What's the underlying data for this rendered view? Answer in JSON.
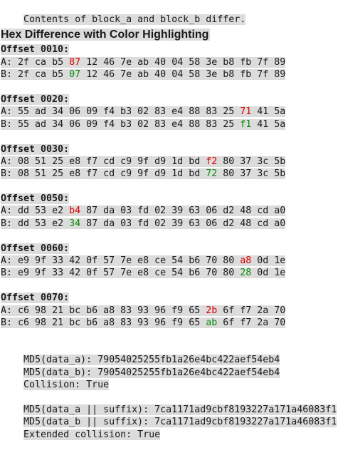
{
  "status_message": "Contents of block_a and block_b differ.",
  "section_title": "Hex Difference with Color Highlighting",
  "colors": {
    "a_diff": "#e00000",
    "b_diff": "#0a8a0a",
    "highlight_bg": "#dcdcdc"
  },
  "blocks": [
    {
      "offset_label": "Offset 0010:",
      "a_prefix": "A: ",
      "b_prefix": "B: ",
      "a_before": "2f ca b5 ",
      "a_diff": "87",
      "a_after": " 12 46 7e ab 40 04 58 3e b8 fb 7f 89",
      "b_before": "2f ca b5 ",
      "b_diff": "07",
      "b_after": " 12 46 7e ab 40 04 58 3e b8 fb 7f 89"
    },
    {
      "offset_label": "Offset 0020:",
      "a_prefix": "A: ",
      "b_prefix": "B: ",
      "a_before": "55 ad 34 06 09 f4 b3 02 83 e4 88 83 25 ",
      "a_diff": "71",
      "a_after": " 41 5a",
      "b_before": "55 ad 34 06 09 f4 b3 02 83 e4 88 83 25 ",
      "b_diff": "f1",
      "b_after": " 41 5a"
    },
    {
      "offset_label": "Offset 0030:",
      "a_prefix": "A: ",
      "b_prefix": "B: ",
      "a_before": "08 51 25 e8 f7 cd c9 9f d9 1d bd ",
      "a_diff": "f2",
      "a_after": " 80 37 3c 5b",
      "b_before": "08 51 25 e8 f7 cd c9 9f d9 1d bd ",
      "b_diff": "72",
      "b_after": " 80 37 3c 5b"
    },
    {
      "offset_label": "Offset 0050:",
      "a_prefix": "A: ",
      "b_prefix": "B: ",
      "a_before": "dd 53 e2 ",
      "a_diff": "b4",
      "a_after": " 87 da 03 fd 02 39 63 06 d2 48 cd a0",
      "b_before": "dd 53 e2 ",
      "b_diff": "34",
      "b_after": " 87 da 03 fd 02 39 63 06 d2 48 cd a0"
    },
    {
      "offset_label": "Offset 0060:",
      "a_prefix": "A: ",
      "b_prefix": "B: ",
      "a_before": "e9 9f 33 42 0f 57 7e e8 ce 54 b6 70 80 ",
      "a_diff": "a8",
      "a_after": " 0d 1e",
      "b_before": "e9 9f 33 42 0f 57 7e e8 ce 54 b6 70 80 ",
      "b_diff": "28",
      "b_after": " 0d 1e"
    },
    {
      "offset_label": "Offset 0070:",
      "a_prefix": "A: ",
      "b_prefix": "B: ",
      "a_before": "c6 98 21 bc b6 a8 83 93 96 f9 65 ",
      "a_diff": "2b",
      "a_after": " 6f f7 2a 70",
      "b_before": "c6 98 21 bc b6 a8 83 93 96 f9 65 ",
      "b_diff": "ab",
      "b_after": " 6f f7 2a 70"
    }
  ],
  "md5_a": "MD5(data_a): 79054025255fb1a26e4bc422aef54eb4",
  "md5_b": "MD5(data_b): 79054025255fb1a26e4bc422aef54eb4",
  "collision": "Collision: True",
  "md5_a_suffix": "MD5(data_a || suffix): 7ca1171ad9cbf8193227a171a46083f1",
  "md5_b_suffix": "MD5(data_b || suffix): 7ca1171ad9cbf8193227a171a46083f1",
  "extended_collision": "Extended collision: True"
}
